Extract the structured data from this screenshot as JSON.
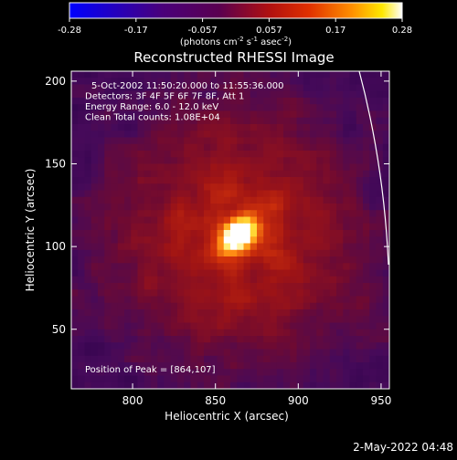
{
  "colorbar": {
    "ticks": [
      "-0.28",
      "-0.17",
      "-0.057",
      "0.057",
      "0.17",
      "0.28"
    ],
    "units_main": "(photons cm",
    "units_exp1": "-2",
    "units_mid": " s",
    "units_exp2": "-1",
    "units_end": " asec",
    "units_exp3": "-2",
    "units_close": ")",
    "range": [
      -0.28,
      0.28
    ]
  },
  "footer": {
    "timestamp": "2-May-2022 04:48"
  },
  "chart_data": {
    "type": "heatmap",
    "title": "Reconstructed RHESSI Image",
    "xlabel": "Heliocentric X (arcsec)",
    "ylabel": "Heliocentric Y (arcsec)",
    "xlim": [
      763,
      955
    ],
    "ylim": [
      14,
      206
    ],
    "x_ticks": [
      800,
      850,
      900,
      950
    ],
    "y_ticks": [
      50,
      100,
      150,
      200
    ],
    "annotations": [
      "5-Oct-2002 11:50:20.000 to 11:55:36.000",
      "Detectors: 3F 4F 5F 6F 7F 8F, Att 1",
      "Energy Range: 6.0 - 12.0 keV",
      "Clean     Total counts: 1.08E+04"
    ],
    "peak_label": "Position of Peak = [864,107]",
    "peak": {
      "x": 864,
      "y": 107
    },
    "colormap": "blue-purple-red-yellow-white"
  }
}
